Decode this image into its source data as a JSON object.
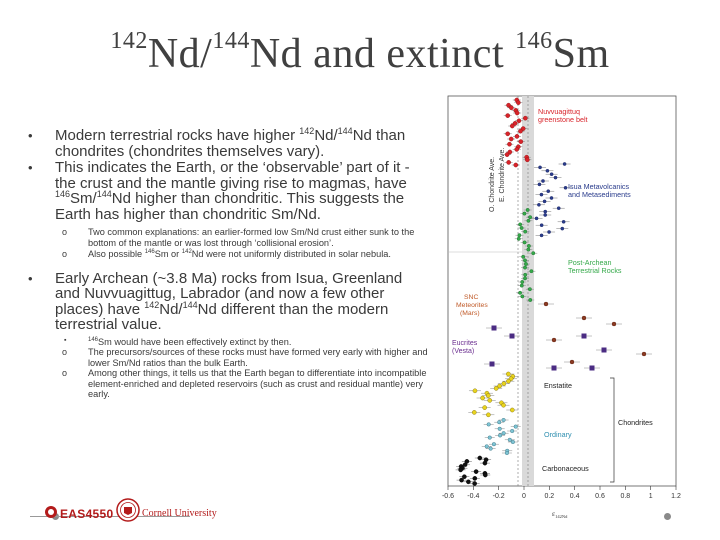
{
  "title": {
    "sup1": "142",
    "main1": "Nd/",
    "sup2": "144",
    "main2": "Nd and extinct ",
    "sup3": "146",
    "main3": "Sm"
  },
  "bullets": {
    "b1": {
      "pre": "Modern terrestrial rocks have higher ",
      "s1": "142",
      "m1": "Nd/",
      "s2": "144",
      "post": "Nd than chondrites (chondrites themselves vary)."
    },
    "b2": {
      "pre": "This indicates the Earth, or the ‘observable’ part of it - the crust and the mantle giving rise to magmas, have ",
      "s1": "146",
      "m1": "Sm/",
      "s2": "144",
      "post": "Nd higher than chondritic. This suggests the Earth has higher than chondritic Sm/Nd."
    },
    "b2_sub1": "Two common explanations: an earlier-formed low Sm/Nd crust either sunk to the bottom of the mantle or was lost through ‘collisional erosion’.",
    "b2_sub2": {
      "pre": "Also possible ",
      "s1": "146",
      "m1": "Sm or ",
      "s2": "142",
      "post": "Nd were not uniformly distributed in solar nebula."
    },
    "b3": {
      "pre": "Early Archean (~3.8 Ma) rocks from Isua, Greenland and Nuvvuagittug, Labrador (and now a few other places) have ",
      "s1": "142",
      "m1": "Nd/",
      "s2": "144",
      "post": "Nd different than the modern terrestrial value."
    },
    "b3_sub1": {
      "s1": "146",
      "post": "Sm would have been effectively extinct by then."
    },
    "b3_sub2": "The precursors/sources of these rocks must have formed very early with higher and lower Sm/Nd ratios than the bulk Earth.",
    "b3_sub3": "Among other things, it tells us that the Earth began to differentiate into incompatible element-enriched and depleted reservoirs (such as crust and residual mantle) very early."
  },
  "figure": {
    "labels": {
      "nuvvuagittuq": "Nuvvuagittuq",
      "greenstone": "greenstone belt",
      "isua1": "Isua Metavolcanics",
      "isua2": "and Metasediments",
      "post1": "Post-Archean",
      "post2": "Terrestrial Rocks",
      "snc1": "SNC",
      "snc2": "Meteorites",
      "snc3": "(Mars)",
      "eucrites1": "Eucrites",
      "eucrites2": "(Vesta)",
      "enstatite": "Enstatite",
      "ordinary": "Ordinary",
      "chondrites": "Chondrites",
      "carbonaceous": "Carbonaceous",
      "o_chondrite": "O. Chondrite Ave.",
      "e_chondrite": "E. Chondrite Ave."
    },
    "x_ticks": [
      "-0.6",
      "-0.4",
      "-0.2",
      "0",
      "0.2",
      "0.4",
      "0.6",
      "0.8",
      "1",
      "1.2"
    ],
    "x_label": "ε",
    "x_label_sub": "142Nd"
  },
  "footer": {
    "course": "EAS4550",
    "university": "Cornell University"
  },
  "colors": {
    "red": "#d8232a",
    "navy": "#2a3c8c",
    "green": "#35a94a",
    "purple": "#4b2c83",
    "brown": "#8b3a22",
    "yellow": "#e8d31e",
    "cyan": "#7ec4d4",
    "ordinary_label": "#2f8fb0",
    "snc_label": "#c05a28",
    "eucrite_label": "#6a2d8f"
  }
}
